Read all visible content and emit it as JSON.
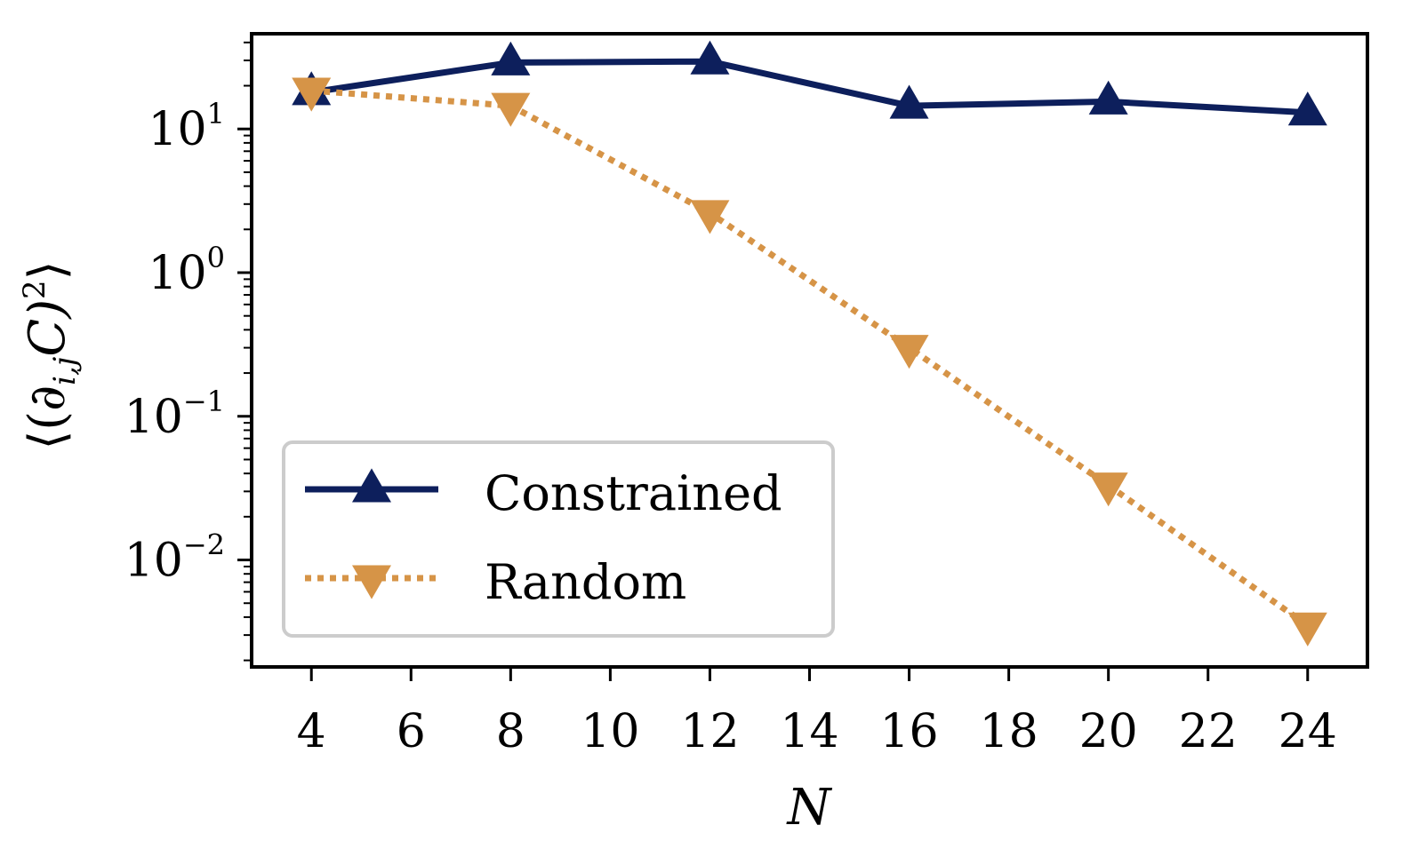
{
  "chart_data": {
    "type": "line",
    "x": [
      4,
      8,
      12,
      16,
      20,
      24
    ],
    "series": [
      {
        "name": "Constrained",
        "values": [
          18,
          29,
          29.5,
          14.5,
          15.5,
          13
        ],
        "color": "#0d1f5c",
        "linestyle": "solid",
        "marker": "triangle-up"
      },
      {
        "name": "Random",
        "values": [
          18.5,
          14.5,
          2.6,
          0.3,
          0.033,
          0.0035
        ],
        "color": "#d69447",
        "linestyle": "dotted",
        "marker": "triangle-down"
      }
    ],
    "xlabel": "N",
    "ylabel": "⟨(∂_{i,j}C)^2⟩",
    "ylabel_parts": {
      "left": "⟨(∂",
      "sub": "i,j",
      "mid": "C)",
      "sup": "2",
      "right": "⟩"
    },
    "xticks": [
      "4",
      "6",
      "8",
      "10",
      "12",
      "14",
      "16",
      "18",
      "20",
      "22",
      "24"
    ],
    "yticks": [
      {
        "base": "10",
        "exp": "1",
        "value": 10
      },
      {
        "base": "10",
        "exp": "0",
        "value": 1
      },
      {
        "base": "10",
        "exp": "−1",
        "value": 0.1
      },
      {
        "base": "10",
        "exp": "−2",
        "value": 0.01
      }
    ],
    "xlim": [
      2.8,
      25.2
    ],
    "ylim": [
      0.0018,
      46
    ],
    "yscale": "log",
    "legend_position": "lower-left"
  }
}
